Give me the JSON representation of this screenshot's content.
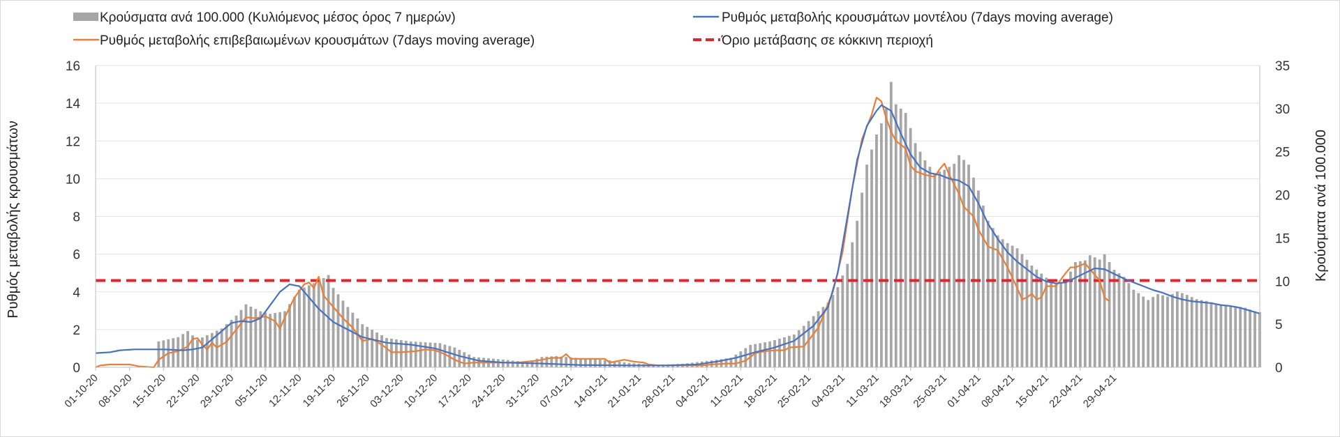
{
  "chart_data": {
    "type": "bar+line",
    "legend": {
      "bars": "Κρούσματα ανά 100.000 (Κυλιόμενος μέσος όρος 7 ημερών)",
      "model": "Ρυθμός μεταβολής κρουσμάτων μοντέλου (7days moving average)",
      "confirmed": "Ρυθμός μεταβολής επιβεβαιωμένων κρουσμάτων (7days moving average)",
      "threshold": "Όριο μετάβασης σε κόκκινη περιοχή"
    },
    "ylabel_left": "Ρυθμός μεταβολής κρουσμάτων",
    "ylabel_right": "Κρούσματα ανά 100.000",
    "ylim_left": [
      0,
      16
    ],
    "yticks_left": [
      "0",
      "2",
      "4",
      "6",
      "8",
      "10",
      "12",
      "14",
      "16"
    ],
    "ylim_right": [
      0,
      35
    ],
    "yticks_right": [
      "0",
      "5",
      "10",
      "15",
      "20",
      "25",
      "30",
      "35"
    ],
    "grid": true,
    "x_dates": [
      "01-10-20",
      "08-10-20",
      "15-10-20",
      "22-10-20",
      "29-10-20",
      "05-11-20",
      "12-11-20",
      "19-11-20",
      "26-11-20",
      "03-12-20",
      "10-12-20",
      "17-12-20",
      "24-12-20",
      "31-12-20",
      "07-01-21",
      "14-01-21",
      "21-01-21",
      "28-01-21",
      "04-02-21",
      "11-02-21",
      "18-02-21",
      "25-02-21",
      "04-03-21",
      "11-03-21",
      "18-03-21",
      "25-03-21",
      "01-04-21",
      "08-04-21",
      "15-04-21",
      "22-04-21",
      "29-04-21"
    ],
    "threshold_left": 4.6,
    "bars_per_100k_keypoints": [
      [
        0,
        0
      ],
      [
        12,
        0
      ],
      [
        13,
        3
      ],
      [
        17,
        3.5
      ],
      [
        19,
        4.2
      ],
      [
        21,
        3.2
      ],
      [
        26,
        4.5
      ],
      [
        29,
        6
      ],
      [
        31,
        7.3
      ],
      [
        34,
        6.5
      ],
      [
        36,
        6.2
      ],
      [
        39,
        6.5
      ],
      [
        42,
        9
      ],
      [
        46,
        10
      ],
      [
        48,
        10.7
      ],
      [
        49,
        9.2
      ],
      [
        52,
        7
      ],
      [
        55,
        5
      ],
      [
        60,
        3.4
      ],
      [
        65,
        3
      ],
      [
        71,
        2.8
      ],
      [
        74,
        2.3
      ],
      [
        78,
        1.2
      ],
      [
        84,
        0.9
      ],
      [
        89,
        0.6
      ],
      [
        92,
        1.2
      ],
      [
        95,
        1.3
      ],
      [
        101,
        1
      ],
      [
        106,
        0.8
      ],
      [
        110,
        0.5
      ],
      [
        115,
        0.3
      ],
      [
        121,
        0.4
      ],
      [
        127,
        0.8
      ],
      [
        131,
        1.1
      ],
      [
        135,
        2.6
      ],
      [
        139,
        3
      ],
      [
        144,
        3.8
      ],
      [
        146,
        4.8
      ],
      [
        149,
        6.5
      ],
      [
        151,
        7.5
      ],
      [
        153,
        9.3
      ],
      [
        155,
        12
      ],
      [
        157,
        17
      ],
      [
        159,
        23.5
      ],
      [
        161,
        27
      ],
      [
        162,
        28.3
      ],
      [
        163,
        30
      ],
      [
        164,
        33.1
      ],
      [
        165,
        30.5
      ],
      [
        167,
        29.5
      ],
      [
        169,
        26
      ],
      [
        171,
        24
      ],
      [
        173,
        22.5
      ],
      [
        175,
        22.9
      ],
      [
        177,
        23.6
      ],
      [
        178,
        24.6
      ],
      [
        180,
        23.5
      ],
      [
        182,
        20.5
      ],
      [
        184,
        17
      ],
      [
        186,
        15.3
      ],
      [
        188,
        14.4
      ],
      [
        190,
        13.8
      ],
      [
        193,
        11.8
      ],
      [
        196,
        10.4
      ],
      [
        198,
        9.8
      ],
      [
        200,
        10
      ],
      [
        202,
        12.2
      ],
      [
        204,
        12.4
      ],
      [
        205,
        13
      ],
      [
        207,
        12.5
      ],
      [
        208,
        13.1
      ],
      [
        210,
        11.3
      ],
      [
        212,
        10.5
      ],
      [
        214,
        9
      ],
      [
        216,
        8.2
      ],
      [
        217,
        7.8
      ],
      [
        219,
        8.5
      ],
      [
        221,
        8.2
      ],
      [
        223,
        8.8
      ],
      [
        225,
        8.4
      ],
      [
        227,
        7.9
      ],
      [
        229,
        7.7
      ],
      [
        231,
        7.4
      ],
      [
        233,
        7.2
      ],
      [
        235,
        7.1
      ],
      [
        237,
        6.9
      ],
      [
        239,
        6.5
      ],
      [
        240,
        6.4
      ]
    ],
    "model_rate_keypoints": [
      [
        0,
        0.75
      ],
      [
        3,
        0.8
      ],
      [
        5,
        0.9
      ],
      [
        8,
        0.95
      ],
      [
        14,
        0.95
      ],
      [
        18,
        0.9
      ],
      [
        20,
        0.95
      ],
      [
        22,
        1.05
      ],
      [
        25,
        1.7
      ],
      [
        28,
        2.35
      ],
      [
        30,
        2.45
      ],
      [
        32,
        2.4
      ],
      [
        34,
        2.6
      ],
      [
        36,
        3.3
      ],
      [
        38,
        4
      ],
      [
        40,
        4.4
      ],
      [
        42,
        4.3
      ],
      [
        44,
        3.7
      ],
      [
        46,
        3.1
      ],
      [
        49,
        2.4
      ],
      [
        52,
        2
      ],
      [
        55,
        1.6
      ],
      [
        60,
        1.3
      ],
      [
        65,
        1.2
      ],
      [
        70,
        1
      ],
      [
        75,
        0.6
      ],
      [
        79,
        0.35
      ],
      [
        84,
        0.25
      ],
      [
        92,
        0.2
      ],
      [
        100,
        0.12
      ],
      [
        110,
        0.1
      ],
      [
        118,
        0.1
      ],
      [
        124,
        0.15
      ],
      [
        128,
        0.3
      ],
      [
        132,
        0.5
      ],
      [
        136,
        0.8
      ],
      [
        140,
        1.05
      ],
      [
        144,
        1.4
      ],
      [
        148,
        2.2
      ],
      [
        151,
        3.2
      ],
      [
        153,
        5
      ],
      [
        155,
        8
      ],
      [
        157,
        11
      ],
      [
        159,
        12.8
      ],
      [
        161,
        13.6
      ],
      [
        162,
        13.9
      ],
      [
        164,
        13.6
      ],
      [
        166,
        12.4
      ],
      [
        168,
        11.3
      ],
      [
        170,
        10.6
      ],
      [
        172,
        10.3
      ],
      [
        174,
        10.2
      ],
      [
        176,
        10
      ],
      [
        178,
        9.9
      ],
      [
        180,
        9.6
      ],
      [
        182,
        8.7
      ],
      [
        184,
        7.6
      ],
      [
        186,
        6.8
      ],
      [
        188,
        6.1
      ],
      [
        190,
        5.6
      ],
      [
        192,
        5.2
      ],
      [
        194,
        4.8
      ],
      [
        196,
        4.55
      ],
      [
        198,
        4.45
      ],
      [
        200,
        4.5
      ],
      [
        202,
        4.75
      ],
      [
        204,
        5
      ],
      [
        206,
        5.25
      ],
      [
        208,
        5.2
      ],
      [
        210,
        4.95
      ],
      [
        212,
        4.7
      ],
      [
        214,
        4.5
      ],
      [
        216,
        4.3
      ],
      [
        218,
        4.1
      ],
      [
        220,
        3.95
      ],
      [
        222,
        3.75
      ],
      [
        224,
        3.6
      ],
      [
        226,
        3.5
      ],
      [
        228,
        3.45
      ],
      [
        230,
        3.4
      ],
      [
        232,
        3.3
      ],
      [
        234,
        3.25
      ],
      [
        236,
        3.15
      ],
      [
        238,
        3
      ],
      [
        240,
        2.85
      ]
    ],
    "confirmed_rate_keypoints": [
      [
        0,
        0
      ],
      [
        1,
        0.1
      ],
      [
        3,
        0.15
      ],
      [
        7,
        0.15
      ],
      [
        9,
        0.05
      ],
      [
        12,
        0
      ],
      [
        13,
        0.4
      ],
      [
        15,
        0.75
      ],
      [
        17,
        0.85
      ],
      [
        19,
        1.1
      ],
      [
        20,
        1.5
      ],
      [
        21,
        1.55
      ],
      [
        22,
        1.2
      ],
      [
        23,
        0.95
      ],
      [
        24,
        1.3
      ],
      [
        25,
        1.05
      ],
      [
        27,
        1.35
      ],
      [
        29,
        2
      ],
      [
        31,
        2.65
      ],
      [
        33,
        2.6
      ],
      [
        35,
        2.7
      ],
      [
        37,
        2.45
      ],
      [
        38,
        2.05
      ],
      [
        39,
        2.65
      ],
      [
        41,
        3.7
      ],
      [
        43,
        4.4
      ],
      [
        44,
        4.5
      ],
      [
        45,
        4.2
      ],
      [
        46,
        4.8
      ],
      [
        47,
        3.8
      ],
      [
        49,
        3.2
      ],
      [
        51,
        2.6
      ],
      [
        53,
        2.1
      ],
      [
        55,
        1.4
      ],
      [
        57,
        1.5
      ],
      [
        59,
        1.2
      ],
      [
        61,
        0.8
      ],
      [
        63,
        0.8
      ],
      [
        66,
        0.85
      ],
      [
        68,
        0.95
      ],
      [
        70,
        0.9
      ],
      [
        72,
        0.7
      ],
      [
        74,
        0.4
      ],
      [
        76,
        0.2
      ],
      [
        78,
        0.25
      ],
      [
        80,
        0.25
      ],
      [
        83,
        0.25
      ],
      [
        87,
        0.25
      ],
      [
        91,
        0.35
      ],
      [
        93,
        0.45
      ],
      [
        94,
        0.5
      ],
      [
        96,
        0.5
      ],
      [
        97,
        0.7
      ],
      [
        98,
        0.45
      ],
      [
        100,
        0.45
      ],
      [
        102,
        0.45
      ],
      [
        105,
        0.45
      ],
      [
        106,
        0.25
      ],
      [
        107,
        0.3
      ],
      [
        109,
        0.4
      ],
      [
        111,
        0.3
      ],
      [
        113,
        0.25
      ],
      [
        114,
        0.15
      ],
      [
        116,
        0.1
      ],
      [
        120,
        0.1
      ],
      [
        123,
        0.1
      ],
      [
        125,
        0.1
      ],
      [
        127,
        0.15
      ],
      [
        130,
        0.2
      ],
      [
        132,
        0.2
      ],
      [
        134,
        0.35
      ],
      [
        136,
        0.75
      ],
      [
        138,
        0.85
      ],
      [
        140,
        0.9
      ],
      [
        142,
        0.9
      ],
      [
        143,
        1.05
      ],
      [
        146,
        1.1
      ],
      [
        149,
        2.1
      ],
      [
        152,
        4
      ],
      [
        154,
        6.1
      ],
      [
        156,
        9.5
      ],
      [
        158,
        12.1
      ],
      [
        160,
        13.4
      ],
      [
        161,
        14.3
      ],
      [
        162,
        14.1
      ],
      [
        163,
        13.2
      ],
      [
        164,
        12.5
      ],
      [
        165,
        12
      ],
      [
        167,
        11.6
      ],
      [
        168,
        10.7
      ],
      [
        169,
        10.4
      ],
      [
        171,
        10.2
      ],
      [
        173,
        10.1
      ],
      [
        174,
        10.5
      ],
      [
        175,
        10.8
      ],
      [
        176,
        10.2
      ],
      [
        178,
        9.2
      ],
      [
        179,
        8.5
      ],
      [
        181,
        8
      ],
      [
        182,
        7.3
      ],
      [
        184,
        6.4
      ],
      [
        186,
        6.2
      ],
      [
        188,
        5.3
      ],
      [
        190,
        4.2
      ],
      [
        191,
        3.6
      ],
      [
        192,
        3.7
      ],
      [
        193,
        3.9
      ],
      [
        194,
        3.6
      ],
      [
        195,
        3.7
      ],
      [
        196,
        4.3
      ],
      [
        198,
        4.3
      ],
      [
        200,
        5
      ],
      [
        201,
        5.3
      ],
      [
        202,
        5.3
      ],
      [
        204,
        5.5
      ],
      [
        206,
        4.9
      ],
      [
        207,
        4.6
      ],
      [
        208,
        3.7
      ],
      [
        209,
        3.5
      ]
    ]
  }
}
